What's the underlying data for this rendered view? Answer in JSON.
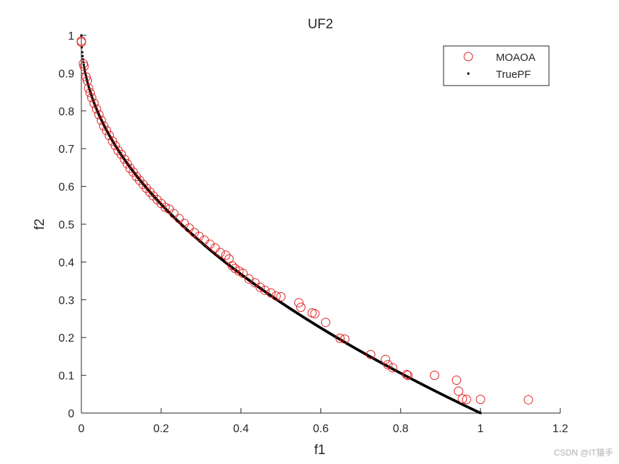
{
  "chart_data": {
    "type": "scatter",
    "title": "UF2",
    "xlabel": "f1",
    "ylabel": "f2",
    "xlim": [
      0,
      1.2
    ],
    "ylim": [
      0,
      1
    ],
    "xticks": [
      "0",
      "0.2",
      "0.4",
      "0.6",
      "0.8",
      "1",
      "1.2"
    ],
    "yticks": [
      "0",
      "0.1",
      "0.2",
      "0.3",
      "0.4",
      "0.5",
      "0.6",
      "0.7",
      "0.8",
      "0.9",
      "1"
    ],
    "legend_position": "top-right",
    "series": [
      {
        "name": "MOAOA",
        "marker": "circle",
        "color": "#e02020",
        "points": [
          [
            0.0,
            0.985
          ],
          [
            0.0,
            0.982
          ],
          [
            0.005,
            0.925
          ],
          [
            0.007,
            0.918
          ],
          [
            0.012,
            0.89
          ],
          [
            0.015,
            0.88
          ],
          [
            0.018,
            0.86
          ],
          [
            0.022,
            0.848
          ],
          [
            0.026,
            0.835
          ],
          [
            0.032,
            0.82
          ],
          [
            0.038,
            0.805
          ],
          [
            0.044,
            0.79
          ],
          [
            0.05,
            0.775
          ],
          [
            0.056,
            0.76
          ],
          [
            0.063,
            0.748
          ],
          [
            0.07,
            0.735
          ],
          [
            0.078,
            0.72
          ],
          [
            0.085,
            0.708
          ],
          [
            0.092,
            0.695
          ],
          [
            0.1,
            0.685
          ],
          [
            0.108,
            0.672
          ],
          [
            0.115,
            0.66
          ],
          [
            0.122,
            0.648
          ],
          [
            0.13,
            0.638
          ],
          [
            0.138,
            0.626
          ],
          [
            0.146,
            0.616
          ],
          [
            0.155,
            0.605
          ],
          [
            0.163,
            0.595
          ],
          [
            0.172,
            0.585
          ],
          [
            0.18,
            0.575
          ],
          [
            0.19,
            0.565
          ],
          [
            0.2,
            0.555
          ],
          [
            0.21,
            0.545
          ],
          [
            0.22,
            0.54
          ],
          [
            0.232,
            0.528
          ],
          [
            0.245,
            0.515
          ],
          [
            0.258,
            0.502
          ],
          [
            0.27,
            0.49
          ],
          [
            0.283,
            0.478
          ],
          [
            0.295,
            0.468
          ],
          [
            0.308,
            0.458
          ],
          [
            0.322,
            0.447
          ],
          [
            0.335,
            0.437
          ],
          [
            0.348,
            0.425
          ],
          [
            0.362,
            0.418
          ],
          [
            0.37,
            0.408
          ],
          [
            0.378,
            0.39
          ],
          [
            0.385,
            0.383
          ],
          [
            0.395,
            0.376
          ],
          [
            0.405,
            0.37
          ],
          [
            0.42,
            0.355
          ],
          [
            0.435,
            0.345
          ],
          [
            0.448,
            0.333
          ],
          [
            0.46,
            0.325
          ],
          [
            0.475,
            0.318
          ],
          [
            0.488,
            0.31
          ],
          [
            0.5,
            0.308
          ],
          [
            0.545,
            0.292
          ],
          [
            0.55,
            0.28
          ],
          [
            0.578,
            0.265
          ],
          [
            0.585,
            0.263
          ],
          [
            0.612,
            0.24
          ],
          [
            0.648,
            0.198
          ],
          [
            0.66,
            0.196
          ],
          [
            0.725,
            0.155
          ],
          [
            0.762,
            0.142
          ],
          [
            0.768,
            0.128
          ],
          [
            0.78,
            0.12
          ],
          [
            0.815,
            0.102
          ],
          [
            0.818,
            0.1
          ],
          [
            0.885,
            0.1
          ],
          [
            0.94,
            0.087
          ],
          [
            0.945,
            0.058
          ],
          [
            0.955,
            0.038
          ],
          [
            0.965,
            0.036
          ],
          [
            1.0,
            0.036
          ],
          [
            1.12,
            0.035
          ]
        ]
      },
      {
        "name": "TruePF",
        "marker": "dot",
        "color": "#000000",
        "function": "f2 = 1 - sqrt(f1)",
        "x_range": [
          0,
          1
        ],
        "points_count": 1000
      }
    ]
  },
  "watermark": "CSDN @IT猿手"
}
